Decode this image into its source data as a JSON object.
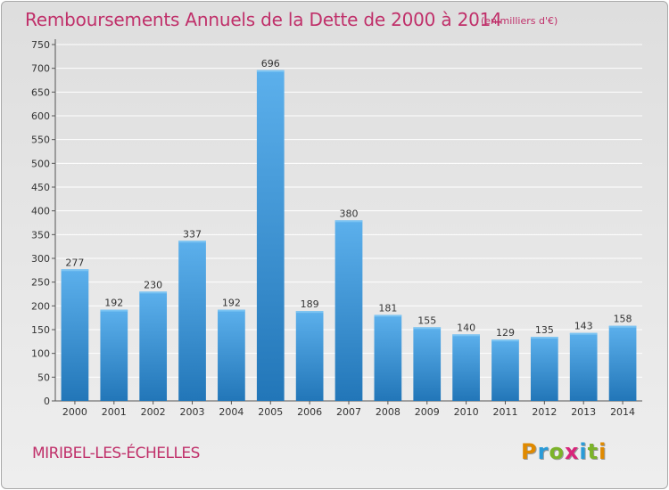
{
  "header": {
    "title": "Remboursements Annuels de la Dette de 2000 à 2014",
    "unit": "(en milliers d'€)"
  },
  "footer": {
    "commune": "MIRIBEL-LES-ÉCHELLES",
    "brand_letters": [
      "P",
      "r",
      "o",
      "x",
      "i",
      "t",
      "i"
    ],
    "brand_colors": [
      "#e08a00",
      "#2a9bd8",
      "#7cb32a",
      "#d8267a",
      "#2a9bd8",
      "#7cb32a",
      "#e08a00"
    ]
  },
  "colors": {
    "bar_top": "#5cb0ec",
    "bar_bottom": "#2276b8",
    "title": "#c0306a",
    "grid": "#ffffff"
  },
  "chart_data": {
    "type": "bar",
    "categories": [
      "2000",
      "2001",
      "2002",
      "2003",
      "2004",
      "2005",
      "2006",
      "2007",
      "2008",
      "2009",
      "2010",
      "2011",
      "2012",
      "2013",
      "2014"
    ],
    "values": [
      277,
      192,
      230,
      337,
      192,
      696,
      189,
      380,
      181,
      155,
      140,
      129,
      135,
      143,
      158
    ],
    "yticks": [
      0,
      50,
      100,
      150,
      200,
      250,
      300,
      350,
      400,
      450,
      500,
      550,
      600,
      650,
      700,
      750
    ],
    "ylim": [
      0,
      750
    ],
    "grid": true,
    "data_labels": true
  }
}
